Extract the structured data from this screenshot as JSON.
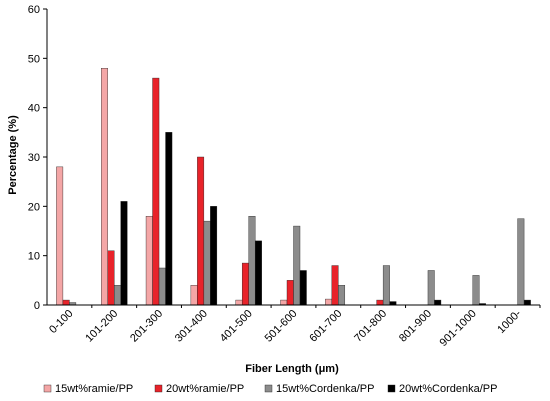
{
  "chart_data": {
    "type": "bar",
    "title": "",
    "xlabel": "Fiber Length (μm)",
    "ylabel": "Percentage (%)",
    "ylim": [
      0,
      60
    ],
    "yticks": [
      0,
      10,
      20,
      30,
      40,
      50,
      60
    ],
    "grid": false,
    "legend_position": "bottom",
    "categories": [
      "0-100",
      "101-200",
      "201-300",
      "301-400",
      "401-500",
      "501-600",
      "601-700",
      "701-800",
      "801-900",
      "901-1000",
      "1000-"
    ],
    "series": [
      {
        "name": "15wt%ramie/PP",
        "color": "#f4a6a6",
        "values": [
          28,
          48,
          18,
          4,
          1,
          1,
          1.2,
          0,
          0,
          0,
          0
        ]
      },
      {
        "name": "20wt%ramie/PP",
        "color": "#e8232a",
        "values": [
          1,
          11,
          46,
          30,
          8.5,
          5,
          8,
          1,
          0,
          0,
          0
        ]
      },
      {
        "name": "15wt%Cordenka/PP",
        "color": "#8c8c8c",
        "values": [
          0.5,
          4,
          7.5,
          17,
          18,
          16,
          4,
          8,
          7,
          6,
          17.5
        ]
      },
      {
        "name": "20wt%Cordenka/PP",
        "color": "#000000",
        "values": [
          0,
          21,
          35,
          20,
          13,
          7,
          0,
          0.7,
          1,
          0.3,
          1
        ]
      }
    ]
  }
}
